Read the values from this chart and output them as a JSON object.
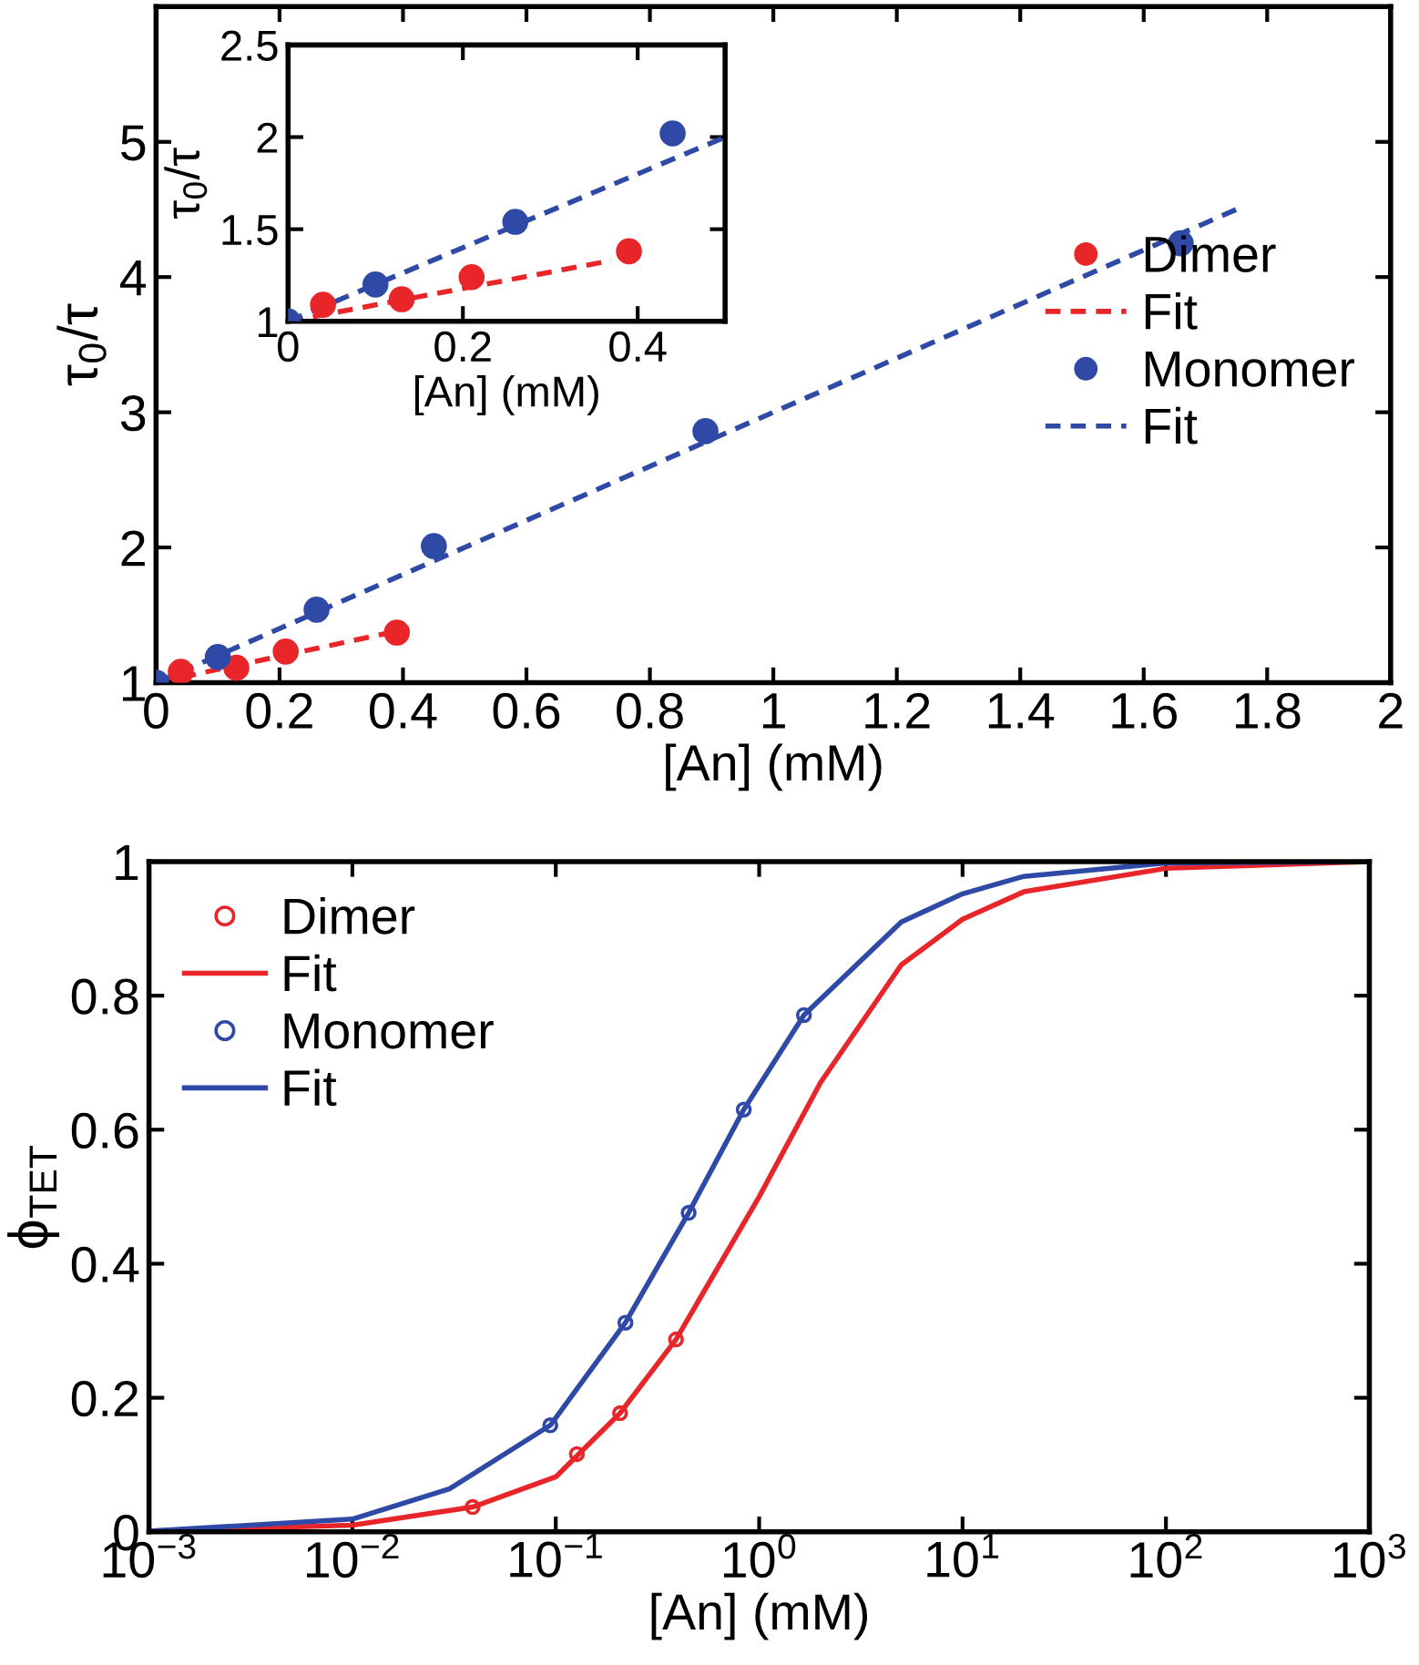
{
  "chart_data": [
    {
      "type": "scatter",
      "xlabel": "[An] (mM)",
      "ylabel": "τ$_{0}$/τ",
      "xlim": [
        0,
        2
      ],
      "ylim": [
        1,
        6
      ],
      "xticks": [
        0,
        0.2,
        0.4,
        0.6,
        0.8,
        1,
        1.2,
        1.4,
        1.6,
        1.8,
        2
      ],
      "yticks": [
        1,
        2,
        3,
        4,
        5
      ],
      "grid": false,
      "legend": "right",
      "series": [
        {
          "name": "Dimer",
          "color": "#e8262a",
          "marker": "circle",
          "x": [
            0.04,
            0.13,
            0.21,
            0.39
          ],
          "values": [
            1.08,
            1.11,
            1.23,
            1.37
          ]
        },
        {
          "name": "Fit",
          "color": "#e8262a",
          "type": "line",
          "line_style": "dashed",
          "x": [
            0,
            0.41
          ],
          "values": [
            1.0,
            1.4
          ]
        },
        {
          "name": "Monomer",
          "color": "#2f4aa6",
          "marker": "circle",
          "x": [
            0,
            0.1,
            0.26,
            0.45,
            0.89,
            1.66
          ],
          "values": [
            1.0,
            1.19,
            1.54,
            2.01,
            2.86,
            4.25
          ]
        },
        {
          "name": "Fit",
          "color": "#2f4aa6",
          "type": "line",
          "line_style": "dashed",
          "x": [
            0,
            0.9,
            1.75
          ],
          "values": [
            1.0,
            2.8,
            4.5
          ]
        }
      ]
    },
    {
      "type": "scatter",
      "xlabel": "[An] (mM)",
      "ylabel": "τ$_{0}$/τ",
      "xlim": [
        0,
        0.5
      ],
      "ylim": [
        1,
        2.5
      ],
      "xticks": [
        0,
        0.2,
        0.4
      ],
      "yticks": [
        1,
        1.5,
        2,
        2.5
      ],
      "grid": false,
      "series": [
        {
          "color": "#e8262a",
          "marker": "circle",
          "x": [
            0.04,
            0.13,
            0.21,
            0.39
          ],
          "values": [
            1.09,
            1.12,
            1.24,
            1.38
          ]
        },
        {
          "color": "#e8262a",
          "type": "line",
          "line_style": "dashed",
          "x": [
            0,
            0.37
          ],
          "values": [
            1.0,
            1.33
          ]
        },
        {
          "color": "#2f4aa6",
          "marker": "circle",
          "x": [
            0,
            0.1,
            0.26,
            0.44
          ],
          "values": [
            1.0,
            1.2,
            1.54,
            2.02
          ]
        },
        {
          "color": "#2f4aa6",
          "type": "line",
          "line_style": "dashed",
          "x": [
            0,
            0.5
          ],
          "values": [
            1.0,
            2.0
          ]
        }
      ]
    },
    {
      "type": "line",
      "xlabel": "[An] (mM)",
      "ylabel": "ϕ$_{TET}$",
      "log": "x",
      "xlim": [
        0.001,
        1000
      ],
      "ylim": [
        0,
        1
      ],
      "xticks": [
        {
          "value": 0.001,
          "label": "10$^{−3}$"
        },
        {
          "value": 0.01,
          "label": "10$^{−2}$"
        },
        {
          "value": 0.1,
          "label": "10$^{−1}$"
        },
        {
          "value": 1,
          "label": "10$^{0}$"
        },
        {
          "value": 10,
          "label": "10$^{1}$"
        },
        {
          "value": 100,
          "label": "10$^{2}$"
        },
        {
          "value": 1000,
          "label": "10$^{3}$"
        }
      ],
      "yticks": [
        0,
        0.2,
        0.4,
        0.6,
        0.8,
        1
      ],
      "grid": false,
      "legend": "top left",
      "series": [
        {
          "name": "Dimer",
          "color": "#e8262a",
          "type": "scatter",
          "marker": "circle",
          "x": [
            0.039,
            0.127,
            0.207,
            0.39
          ],
          "values": [
            0.037,
            0.116,
            0.177,
            0.287
          ]
        },
        {
          "name": "Fit",
          "color": "#e8262a",
          "line_style": "solid",
          "x": [
            0.001,
            0.01,
            0.039,
            0.1,
            0.207,
            0.39,
            1,
            2,
            5,
            10,
            20,
            100,
            1000
          ],
          "values": [
            0.001,
            0.01,
            0.037,
            0.082,
            0.177,
            0.287,
            0.5,
            0.67,
            0.846,
            0.914,
            0.955,
            0.99,
            1.0
          ]
        },
        {
          "name": "Monomer",
          "color": "#2f4aa6",
          "type": "scatter",
          "marker": "circle",
          "x": [
            0.094,
            0.22,
            0.45,
            0.84,
            1.66
          ],
          "values": [
            0.159,
            0.312,
            0.476,
            0.63,
            0.771
          ]
        },
        {
          "name": "Fit",
          "color": "#2f4aa6",
          "line_style": "solid",
          "x": [
            0.001,
            0.01,
            0.03,
            0.094,
            0.22,
            0.45,
            0.84,
            1.66,
            5,
            10,
            20,
            100,
            1000
          ],
          "values": [
            0.001,
            0.019,
            0.064,
            0.159,
            0.312,
            0.476,
            0.63,
            0.771,
            0.91,
            0.952,
            0.978,
            0.998,
            1.0
          ]
        }
      ]
    }
  ]
}
